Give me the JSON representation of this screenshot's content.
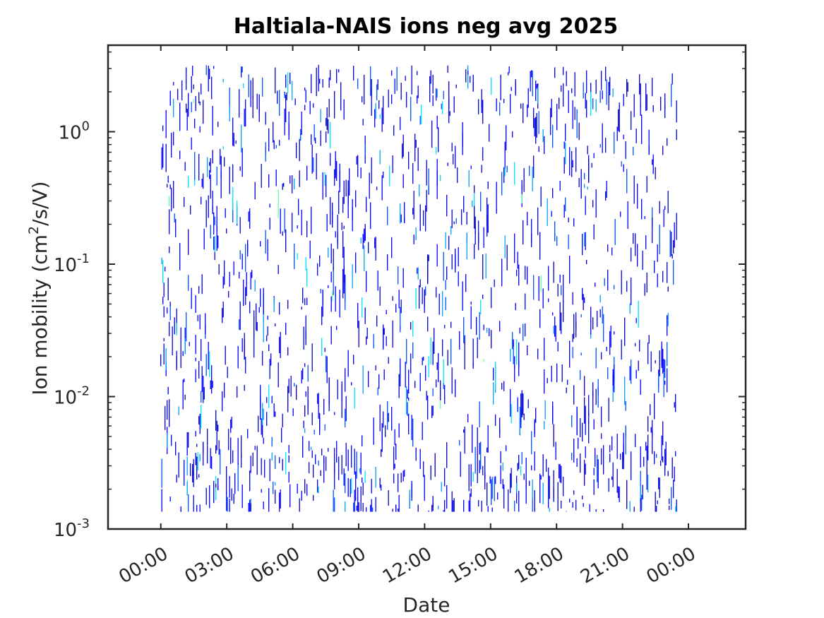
{
  "chart_data": {
    "type": "heatmap",
    "title": "Haltiala-NAIS ions neg avg 2025",
    "xlabel": "Date",
    "ylabel": {
      "before": "Ion mobility (cm",
      "superscript": "2",
      "after": "/s/V)"
    },
    "x_axis": {
      "unit": "hours",
      "range": [
        -2.4,
        26.6
      ],
      "ticks": [
        {
          "value": 0,
          "label": "00:00"
        },
        {
          "value": 3,
          "label": "03:00"
        },
        {
          "value": 6,
          "label": "06:00"
        },
        {
          "value": 9,
          "label": "09:00"
        },
        {
          "value": 12,
          "label": "12:00"
        },
        {
          "value": 15,
          "label": "15:00"
        },
        {
          "value": 18,
          "label": "18:00"
        },
        {
          "value": 21,
          "label": "21:00"
        },
        {
          "value": 24,
          "label": "00:00"
        }
      ]
    },
    "y_axis": {
      "scale": "log",
      "range": [
        0.001,
        4.5
      ],
      "ticks": [
        {
          "value": 0.001,
          "base": "10",
          "exponent": "-3"
        },
        {
          "value": 0.01,
          "base": "10",
          "exponent": "-2"
        },
        {
          "value": 0.1,
          "base": "10",
          "exponent": "-1"
        },
        {
          "value": 1,
          "base": "10",
          "exponent": "0"
        }
      ]
    },
    "data_extent": {
      "x": [
        0,
        23.5
      ],
      "y": [
        0.00135,
        3.2
      ]
    },
    "colormap": [
      "#0000c8",
      "#0000ff",
      "#0050ff",
      "#00a0ff",
      "#00e0ff",
      "#60ffa0"
    ],
    "grid": false,
    "legend": "none"
  }
}
